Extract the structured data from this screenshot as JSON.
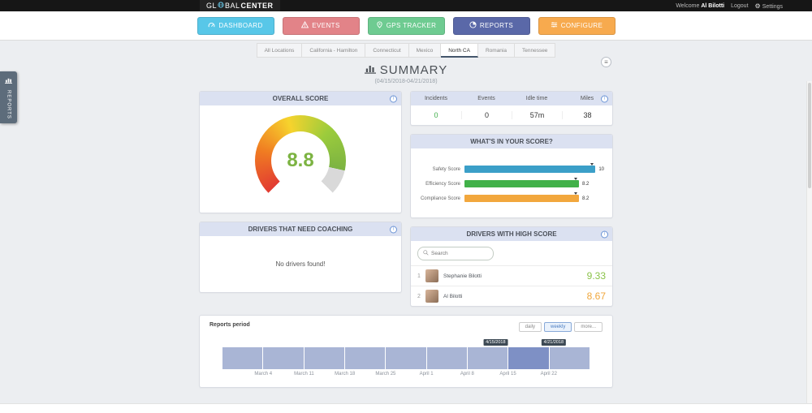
{
  "topbar": {
    "logo_prefix": "GL",
    "logo_mid": "BAL",
    "logo_suffix": "CENTER",
    "welcome_label": "Welcome",
    "username": "Al Bilotti",
    "logout_label": "Logout",
    "settings_label": "Settings"
  },
  "nav": {
    "items": [
      {
        "label": "DASHBOARD",
        "color": "#58c7e8"
      },
      {
        "label": "EVENTS",
        "color": "#e28388"
      },
      {
        "label": "GPS TRACKER",
        "color": "#6ecb91"
      },
      {
        "label": "REPORTS",
        "color": "#5a68a8"
      },
      {
        "label": "CONFIGURE",
        "color": "#f7aa4e"
      }
    ],
    "active": "REPORTS"
  },
  "location_tabs": {
    "items": [
      "All Locations",
      "California - Hamilton",
      "Connecticut",
      "Mexico",
      "North CA",
      "Romania",
      "Tennessee"
    ],
    "active": "North CA"
  },
  "side_tab": {
    "label": "REPORTS"
  },
  "page": {
    "title": "SUMMARY",
    "subtitle": "(04/15/2018-04/21/2018)"
  },
  "overall_score": {
    "title": "OVERALL SCORE",
    "display": "8.8",
    "value": 8.8,
    "max": 10,
    "value_color": "#7cb342",
    "arc_colors": [
      "#e23b32",
      "#f07c22",
      "#f6d32d",
      "#9ccc3c",
      "#7cb342"
    ],
    "rest_color": "#d9d9d9"
  },
  "stats": {
    "columns": [
      "Incidents",
      "Events",
      "Idle time",
      "Miles"
    ],
    "values": [
      {
        "text": "0",
        "color": "#3fae49"
      },
      {
        "text": "0",
        "color": "#333333"
      },
      {
        "text": "57m",
        "color": "#333333"
      },
      {
        "text": "38",
        "color": "#333333"
      }
    ]
  },
  "score_breakdown": {
    "title": "WHAT'S IN YOUR SCORE?",
    "max": 10,
    "rows": [
      {
        "label": "Safety Score",
        "value": 10,
        "display": "10",
        "color": "#3b9fc8"
      },
      {
        "label": "Efficiency Score",
        "value": 8.2,
        "display": "8.2",
        "color": "#41b149"
      },
      {
        "label": "Compliance Score",
        "value": 8.2,
        "display": "8.2",
        "color": "#f2a73d"
      }
    ]
  },
  "coaching": {
    "title": "DRIVERS THAT NEED COACHING",
    "empty_message": "No drivers found!"
  },
  "high_score": {
    "title": "DRIVERS WITH HIGH SCORE",
    "search_placeholder": "Search",
    "drivers": [
      {
        "rank": "1",
        "name": "Stephanie Bilotti",
        "score": "9.33",
        "score_color": "#8bc34a"
      },
      {
        "rank": "2",
        "name": "Al Bilotti",
        "score": "8.67",
        "score_color": "#f0a73c"
      }
    ]
  },
  "reports_period": {
    "title": "Reports period",
    "buttons": [
      "daily",
      "weekly",
      "more..."
    ],
    "active_button": "weekly",
    "weeks": 9,
    "selected_week_index": 7,
    "band_color": "#a9b5d5",
    "selected_color": "#7e90c5",
    "range_start_label": "4/15/2018",
    "range_end_label": "4/21/2018",
    "x_labels": [
      "March 4",
      "March 11",
      "March 18",
      "March 25",
      "April 1",
      "April 8",
      "April 15",
      "April 22"
    ]
  }
}
